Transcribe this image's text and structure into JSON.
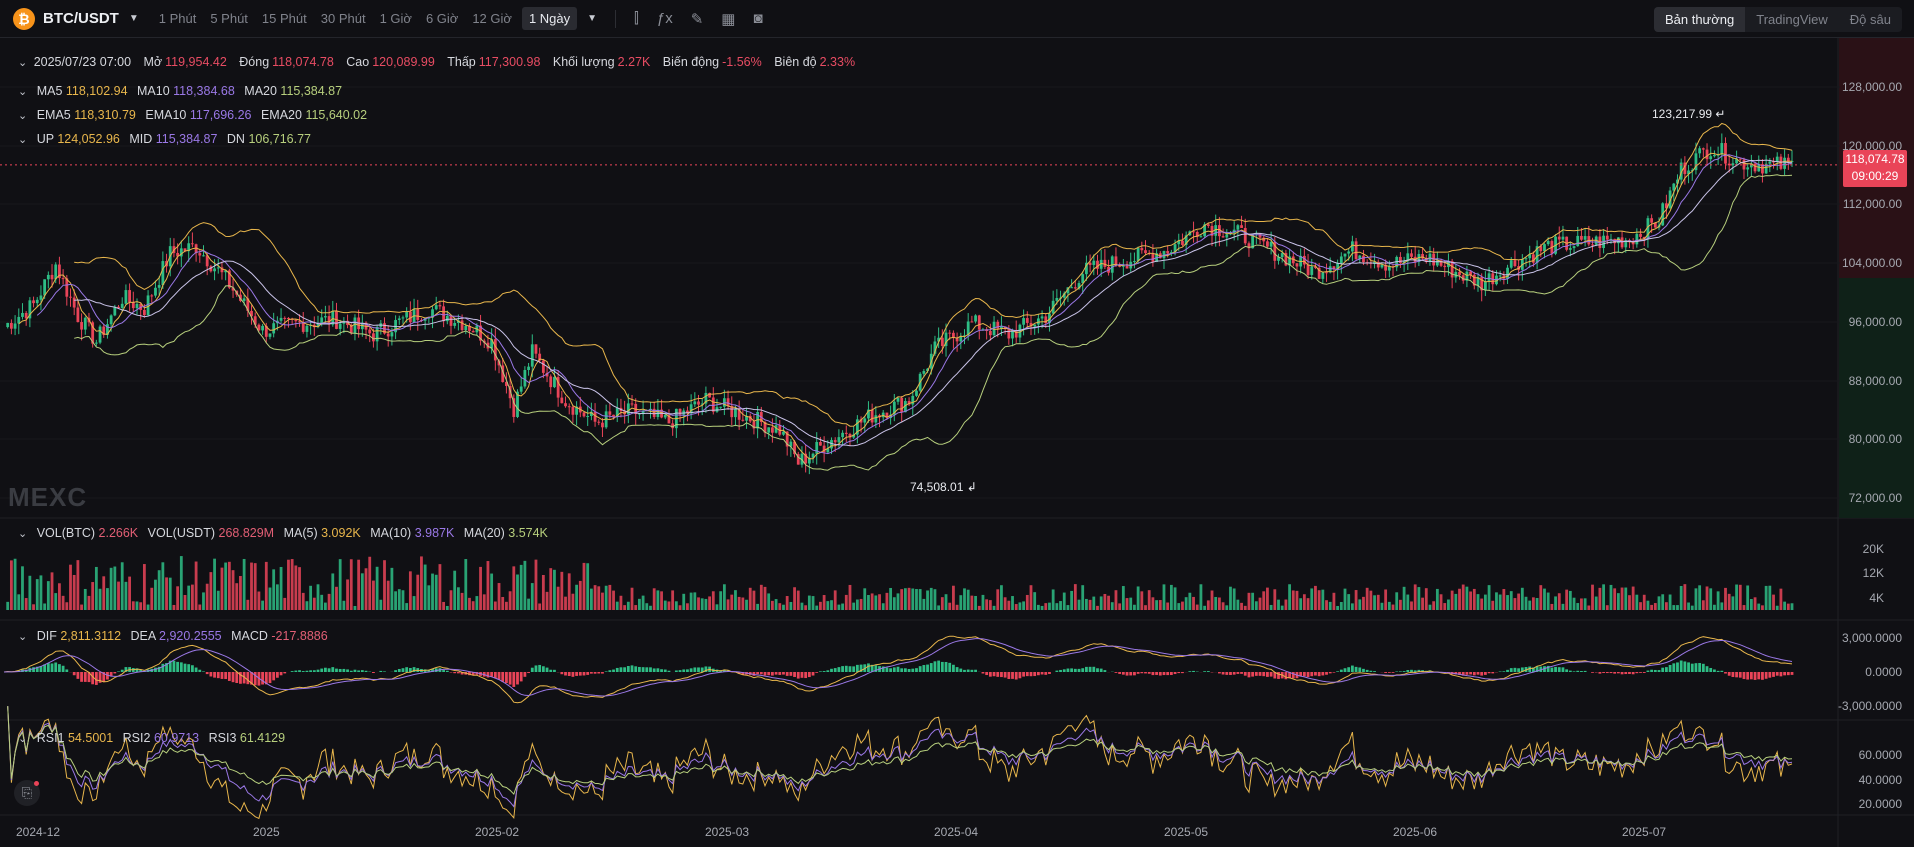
{
  "toolbar": {
    "coin_icon": "bitcoin-icon",
    "pair": "BTC/USDT",
    "timeframes": [
      "1 Phút",
      "5 Phút",
      "15 Phút",
      "30 Phút",
      "1 Giờ",
      "6 Giờ",
      "12 Giờ"
    ],
    "active_timeframe": "1 Ngày",
    "tools": [
      "candle-type-icon",
      "indicator-icon",
      "draw-icon",
      "layout-icon",
      "camera-icon"
    ],
    "views": [
      "Bản thường",
      "TradingView",
      "Độ sâu"
    ]
  },
  "ohlc": {
    "date": "2025/07/23 07:00",
    "open_label": "Mở",
    "open": "119,954.42",
    "close_label": "Đóng",
    "close": "118,074.78",
    "high_label": "Cao",
    "high": "120,089.99",
    "low_label": "Thấp",
    "low": "117,300.98",
    "vol_label": "Khối lượng",
    "vol": "2.27K",
    "chg_label": "Biến động",
    "chg": "-1.56%",
    "amp_label": "Biên độ",
    "amp": "2.33%"
  },
  "ma": {
    "l5": "MA5",
    "v5": "118,102.94",
    "l10": "MA10",
    "v10": "118,384.68",
    "l20": "MA20",
    "v20": "115,384.87"
  },
  "ema": {
    "l5": "EMA5",
    "v5": "118,310.79",
    "l10": "EMA10",
    "v10": "117,696.26",
    "l20": "EMA20",
    "v20": "115,640.02"
  },
  "boll": {
    "lu": "UP",
    "vu": "124,052.96",
    "lm": "MID",
    "vm": "115,384.87",
    "ld": "DN",
    "vd": "106,716.77"
  },
  "vol": {
    "l1": "VOL(BTC)",
    "v1": "2.266K",
    "l2": "VOL(USDT)",
    "v2": "268.829M",
    "l3": "MA(5)",
    "v3": "3.092K",
    "l4": "MA(10)",
    "v4": "3.987K",
    "l5": "MA(20)",
    "v5": "3.574K"
  },
  "macd": {
    "l1": "DIF",
    "v1": "2,811.3112",
    "l2": "DEA",
    "v2": "2,920.2555",
    "l3": "MACD",
    "v3": "-217.8886"
  },
  "rsi": {
    "l1": "RSI1",
    "v1": "54.5001",
    "l2": "RSI2",
    "v2": "60.9713",
    "l3": "RSI3",
    "v3": "61.4129"
  },
  "watermark": "MEXC",
  "price_axis": [
    "128,000.00",
    "120,000.00",
    "112,000.00",
    "104,000.00",
    "96,000.00",
    "88,000.00",
    "80,000.00",
    "72,000.00"
  ],
  "vol_axis": [
    "20K",
    "12K",
    "4K"
  ],
  "macd_axis": [
    "3,000.0000",
    "0.0000",
    "-3,000.0000"
  ],
  "rsi_axis": [
    "60.0000",
    "40.0000",
    "20.0000"
  ],
  "x_axis": [
    "2024-12",
    "2025",
    "2025-02",
    "2025-03",
    "2025-04",
    "2025-05",
    "2025-06",
    "2025-07"
  ],
  "last_price": "118,074.78",
  "countdown": "09:00:29",
  "high_mark": "123,217.99",
  "low_mark": "74,508.01",
  "colors": {
    "up": "#2ebd85",
    "down": "#e94458",
    "ma5": "#e8b64c",
    "ma10": "#9a78e6",
    "ma20": "#b7cf7d"
  }
}
